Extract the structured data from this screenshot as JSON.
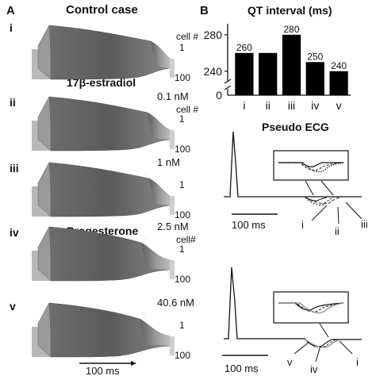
{
  "panel_a": {
    "letter": "A",
    "control_title": "Control case",
    "estradiol_title": "17β-estradiol",
    "progesterone_title": "Progesterone",
    "time_scale_label": "100 ms",
    "rows": [
      {
        "roman": "i",
        "conc": "",
        "cell_label": "cell #",
        "cell_top": "1",
        "cell_bottom": "100"
      },
      {
        "roman": "ii",
        "conc": "0.1 nM",
        "cell_label": "cell #",
        "cell_top": "1",
        "cell_bottom": "100"
      },
      {
        "roman": "iii",
        "conc": "1 nM",
        "cell_label": "",
        "cell_top": "1",
        "cell_bottom": "100"
      },
      {
        "roman": "iv",
        "conc": "2.5 nM",
        "cell_label": "cell#",
        "cell_top": "1",
        "cell_bottom": "100"
      },
      {
        "roman": "v",
        "conc": "40.6 nM",
        "cell_label": "",
        "cell_top": "1",
        "cell_bottom": "100"
      }
    ]
  },
  "panel_b": {
    "letter": "B",
    "ecg_title": "Pseudo ECG",
    "ecg_scale_label_1": "100 ms",
    "ecg_scale_label_2": "100 ms",
    "ecg1_labels": [
      "i",
      "ii",
      "iii"
    ],
    "ecg2_labels": [
      "v",
      "iv",
      "i"
    ]
  },
  "chart_data": {
    "type": "bar",
    "title": "QT interval (ms)",
    "categories": [
      "i",
      "ii",
      "iii",
      "iv",
      "v"
    ],
    "values": [
      260,
      260,
      280,
      250,
      240
    ],
    "data_labels": [
      "260",
      "",
      "280",
      "250",
      "240"
    ],
    "yticks": [
      "0",
      "240",
      "280"
    ],
    "ylim": [
      225,
      292
    ],
    "axis_break": true,
    "bar_color": "#000000"
  }
}
